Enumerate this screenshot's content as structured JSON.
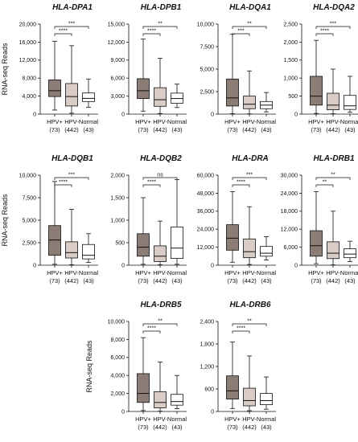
{
  "ylabel": "RNA-seq Reads",
  "chart_data": [
    {
      "type": "boxplot",
      "title": "HLA-DPA1",
      "ylim": [
        0,
        20000
      ],
      "yticks": [
        "0",
        "4,000",
        "8,000",
        "12,000",
        "16,000",
        "20,000"
      ],
      "categories": [
        "HPV+\n(73)",
        "HPV-\n(442)",
        "Normal\n(43)"
      ],
      "boxes": [
        {
          "min": 900,
          "q1": 3900,
          "median": 5200,
          "q3": 7600,
          "max": 16200
        },
        {
          "min": 200,
          "q1": 1800,
          "median": 3900,
          "q3": 6800,
          "max": 15200
        },
        {
          "min": 1500,
          "q1": 2800,
          "median": 3500,
          "q3": 4700,
          "max": 7800
        }
      ],
      "significance": [
        "****",
        "***"
      ]
    },
    {
      "type": "boxplot",
      "title": "HLA-DPB1",
      "ylim": [
        0,
        15000
      ],
      "yticks": [
        "0",
        "3,000",
        "6,000",
        "9,000",
        "12,000",
        "15,000"
      ],
      "categories": [
        "HPV+\n(73)",
        "HPV-\n(442)",
        "Normal\n(43)"
      ],
      "boxes": [
        {
          "min": 500,
          "q1": 2600,
          "median": 3900,
          "q3": 5900,
          "max": 12500
        },
        {
          "min": 100,
          "q1": 1300,
          "median": 2400,
          "q3": 4400,
          "max": 9300
        },
        {
          "min": 1100,
          "q1": 1800,
          "median": 2600,
          "q3": 3500,
          "max": 5000
        }
      ],
      "significance": [
        "****",
        "**"
      ]
    },
    {
      "type": "boxplot",
      "title": "HLA-DQA1",
      "ylim": [
        0,
        10000
      ],
      "yticks": [
        "0",
        "2,500",
        "5,000",
        "7,500",
        "10,000"
      ],
      "categories": [
        "HPV+\n(73)",
        "HPV-\n(442)",
        "Normal\n(43)"
      ],
      "boxes": [
        {
          "min": 50,
          "q1": 900,
          "median": 1800,
          "q3": 3900,
          "max": 8900
        },
        {
          "min": 30,
          "q1": 600,
          "median": 1100,
          "q3": 2000,
          "max": 4800
        },
        {
          "min": 250,
          "q1": 600,
          "median": 1000,
          "q3": 1400,
          "max": 2400
        }
      ],
      "significance": [
        "***",
        "**"
      ]
    },
    {
      "type": "boxplot",
      "title": "HLA-DQA2",
      "ylim": [
        0,
        2500
      ],
      "yticks": [
        "0",
        "500",
        "1,000",
        "1,500",
        "2,000",
        "2,500"
      ],
      "categories": [
        "HPV+\n(73)",
        "HPV-\n(442)",
        "Normal\n(43)"
      ],
      "boxes": [
        {
          "min": 20,
          "q1": 250,
          "median": 500,
          "q3": 1050,
          "max": 2050
        },
        {
          "min": 10,
          "q1": 120,
          "median": 250,
          "q3": 580,
          "max": 1250
        },
        {
          "min": 50,
          "q1": 130,
          "median": 230,
          "q3": 520,
          "max": 1050
        }
      ],
      "significance": [
        "****",
        "***"
      ]
    },
    {
      "type": "boxplot",
      "title": "HLA-DQB1",
      "ylim": [
        0,
        10000
      ],
      "yticks": [
        "0",
        "2,500",
        "5,000",
        "7,500",
        "10,000"
      ],
      "categories": [
        "HPV+\n(73)",
        "HPV-\n(442)",
        "Normal\n(43)"
      ],
      "boxes": [
        {
          "min": 100,
          "q1": 1100,
          "median": 2800,
          "q3": 4400,
          "max": 9300
        },
        {
          "min": 50,
          "q1": 800,
          "median": 1400,
          "q3": 2600,
          "max": 6200
        },
        {
          "min": 300,
          "q1": 700,
          "median": 1100,
          "q3": 2300,
          "max": 3500
        }
      ],
      "significance": [
        "****",
        "***"
      ]
    },
    {
      "type": "boxplot",
      "title": "HLA-DQB2",
      "ylim": [
        0,
        2000
      ],
      "yticks": [
        "0",
        "500",
        "1,000",
        "1,500",
        "2,000"
      ],
      "categories": [
        "HPV+\n(73)",
        "HPV-\n(442)",
        "Normal\n(43)"
      ],
      "boxes": [
        {
          "min": 20,
          "q1": 200,
          "median": 400,
          "q3": 700,
          "max": 1500
        },
        {
          "min": 10,
          "q1": 80,
          "median": 200,
          "q3": 430,
          "max": 980
        },
        {
          "min": 20,
          "q1": 150,
          "median": 380,
          "q3": 850,
          "max": 1900
        }
      ],
      "significance": [
        "****",
        "ns"
      ]
    },
    {
      "type": "boxplot",
      "title": "HLA-DRA",
      "ylim": [
        0,
        60000
      ],
      "yticks": [
        "0",
        "12,000",
        "24,000",
        "36,000",
        "48,000",
        "60,000"
      ],
      "categories": [
        "HPV+\n(73)",
        "HPV-\n(442)",
        "Normal\n(43)"
      ],
      "boxes": [
        {
          "min": 2000,
          "q1": 10000,
          "median": 18000,
          "q3": 27000,
          "max": 49000
        },
        {
          "min": 500,
          "q1": 5000,
          "median": 9000,
          "q3": 17500,
          "max": 39000
        },
        {
          "min": 3500,
          "q1": 6000,
          "median": 8000,
          "q3": 12500,
          "max": 19000
        }
      ],
      "significance": [
        "****",
        "***"
      ]
    },
    {
      "type": "boxplot",
      "title": "HLA-DRB1",
      "ylim": [
        0,
        30000
      ],
      "yticks": [
        "0",
        "6,000",
        "12,000",
        "18,000",
        "24,000",
        "30,000"
      ],
      "categories": [
        "HPV+\n(73)",
        "HPV-\n(442)",
        "Normal\n(43)"
      ],
      "boxes": [
        {
          "min": 500,
          "q1": 3000,
          "median": 6500,
          "q3": 11500,
          "max": 24500
        },
        {
          "min": 100,
          "q1": 2200,
          "median": 4000,
          "q3": 7800,
          "max": 18000
        },
        {
          "min": 1200,
          "q1": 2500,
          "median": 3700,
          "q3": 5500,
          "max": 8000
        }
      ],
      "significance": [
        "**",
        "**"
      ]
    },
    {
      "type": "boxplot",
      "title": "HLA-DRB5",
      "ylim": [
        0,
        10000
      ],
      "yticks": [
        "0",
        "2,000",
        "4,000",
        "6,000",
        "8,000",
        "10,000"
      ],
      "categories": [
        "HPV+\n(73)",
        "HPV-\n(442)",
        "Normal\n(43)"
      ],
      "boxes": [
        {
          "min": 100,
          "q1": 1000,
          "median": 2000,
          "q3": 4200,
          "max": 8200
        },
        {
          "min": 30,
          "q1": 400,
          "median": 1000,
          "q3": 2200,
          "max": 5500
        },
        {
          "min": 300,
          "q1": 700,
          "median": 1100,
          "q3": 1900,
          "max": 4000
        }
      ],
      "significance": [
        "****",
        "**"
      ]
    },
    {
      "type": "boxplot",
      "title": "HLA-DRB6",
      "ylim": [
        0,
        2400
      ],
      "yticks": [
        "0",
        "600",
        "1,200",
        "1,800",
        "2,400"
      ],
      "categories": [
        "HPV+\n(73)",
        "HPV-\n(442)",
        "Normal\n(43)"
      ],
      "boxes": [
        {
          "min": 80,
          "q1": 330,
          "median": 550,
          "q3": 950,
          "max": 1850
        },
        {
          "min": 20,
          "q1": 150,
          "median": 290,
          "q3": 620,
          "max": 1480
        },
        {
          "min": 60,
          "q1": 180,
          "median": 290,
          "q3": 480,
          "max": 920
        }
      ],
      "significance": [
        "****",
        "**"
      ]
    }
  ],
  "colors": {
    "hpv_pos": "#8b7d75",
    "hpv_neg": "#d9cbc5",
    "normal": "#ffffff",
    "stroke": "#111111"
  }
}
